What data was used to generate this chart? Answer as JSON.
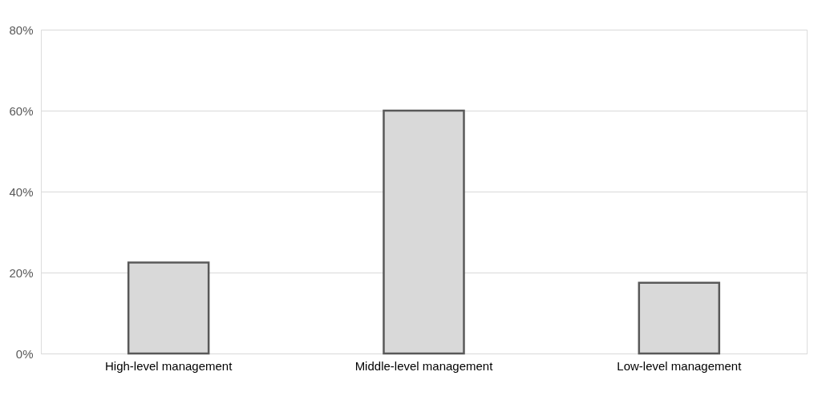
{
  "chart_data": {
    "type": "bar",
    "categories": [
      "High-level management",
      "Middle-level management",
      "Low-level management"
    ],
    "values": [
      22.5,
      60,
      17.5
    ],
    "color": "#d9d9d9",
    "ylim": [
      0,
      80
    ],
    "yticks": [
      {
        "value": 0,
        "label": "0%"
      },
      {
        "value": 20,
        "label": "20%"
      },
      {
        "value": 40,
        "label": "40%"
      },
      {
        "value": 60,
        "label": "60%"
      },
      {
        "value": 80,
        "label": "80%"
      }
    ],
    "grid": "y"
  }
}
